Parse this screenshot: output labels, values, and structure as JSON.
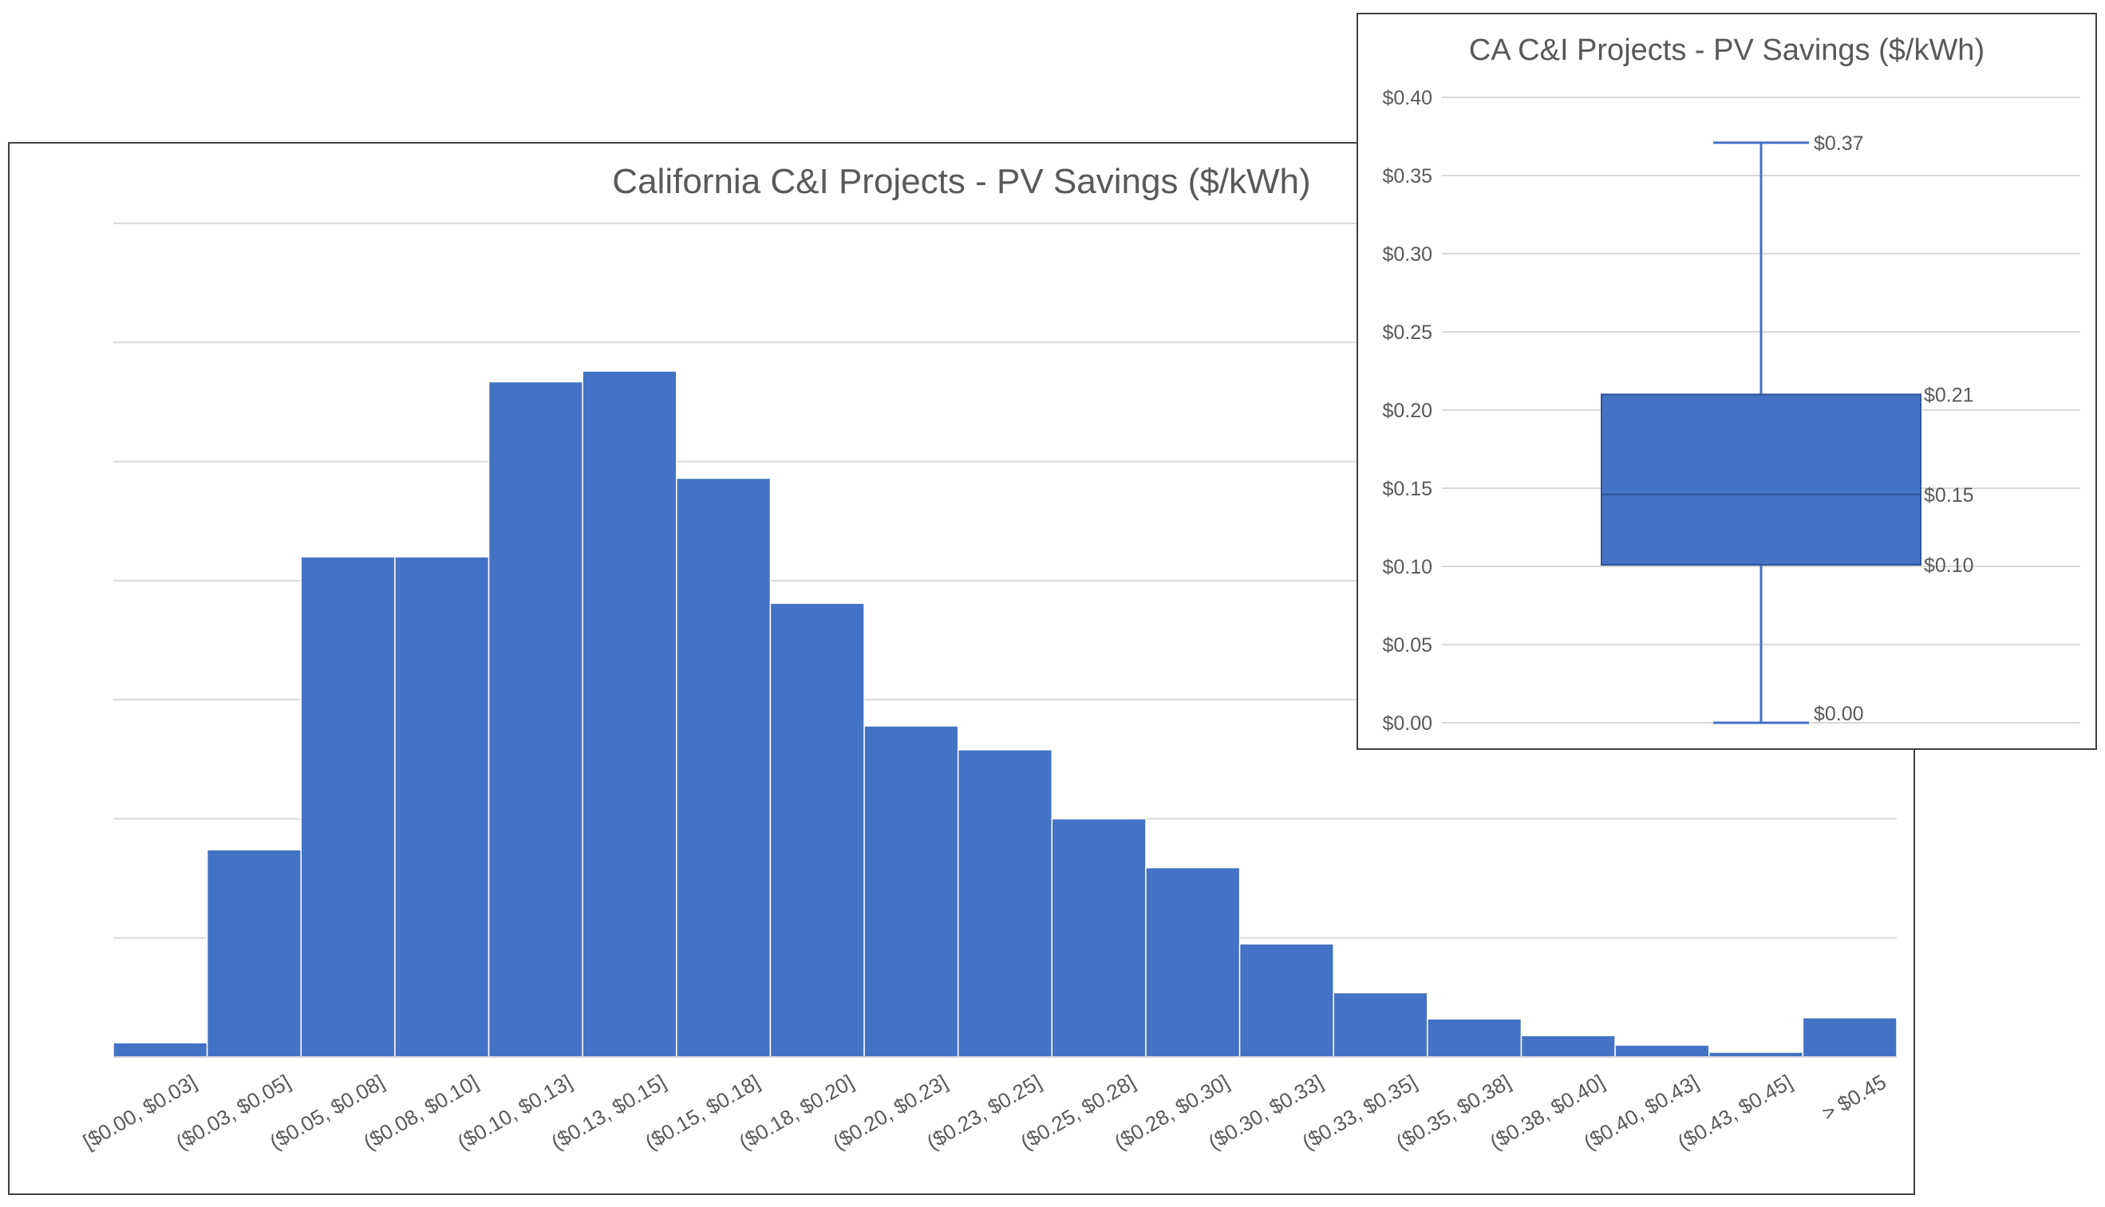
{
  "chart_data": [
    {
      "type": "bar",
      "title": "California C&I Projects - PV Savings ($/kWh)",
      "xlabel": "",
      "ylabel": "",
      "categories": [
        "[$0.00, $0.03]",
        "($0.03, $0.05]",
        "($0.05, $0.08]",
        "($0.08, $0.10]",
        "($0.10, $0.13]",
        "($0.13, $0.15]",
        "($0.15, $0.18]",
        "($0.18, $0.20]",
        "($0.20, $0.23]",
        "($0.23, $0.25]",
        "($0.25, $0.28]",
        "($0.28, $0.30]",
        "($0.30, $0.33]",
        "($0.33, $0.35]",
        "($0.35, $0.38]",
        "($0.38, $0.40]",
        "($0.40, $0.43]",
        "($0.43, $0.45]",
        "> $0.45"
      ],
      "values": [
        0.12,
        1.74,
        4.2,
        4.2,
        5.67,
        5.76,
        4.86,
        3.81,
        2.78,
        2.58,
        2.0,
        1.59,
        0.95,
        0.54,
        0.32,
        0.18,
        0.1,
        0.04,
        0.33
      ],
      "ylim": [
        0,
        7
      ],
      "gridlines": [
        1,
        2,
        3,
        4,
        5,
        6,
        7
      ],
      "y_tick_labels_shown": false,
      "grid": true,
      "bar_color": "#4472C4"
    },
    {
      "type": "box",
      "title": "CA C&I Projects - PV Savings ($/kWh)",
      "xlabel": "",
      "ylabel": "",
      "ylim": [
        0,
        0.4
      ],
      "yticks": [
        0,
        0.05,
        0.1,
        0.15,
        0.2,
        0.25,
        0.3,
        0.35,
        0.4
      ],
      "ytick_labels": [
        "$0.00",
        "$0.05",
        "$0.10",
        "$0.15",
        "$0.20",
        "$0.25",
        "$0.30",
        "$0.35",
        "$0.40"
      ],
      "min": 0.0,
      "q1": 0.101,
      "median": 0.146,
      "q3": 0.21,
      "max": 0.371,
      "labels": {
        "min": "$0.00",
        "q1": "$0.10",
        "median": "$0.15",
        "q3": "$0.21",
        "max": "$0.37"
      },
      "grid": true,
      "box_color": "#4472C4"
    }
  ]
}
